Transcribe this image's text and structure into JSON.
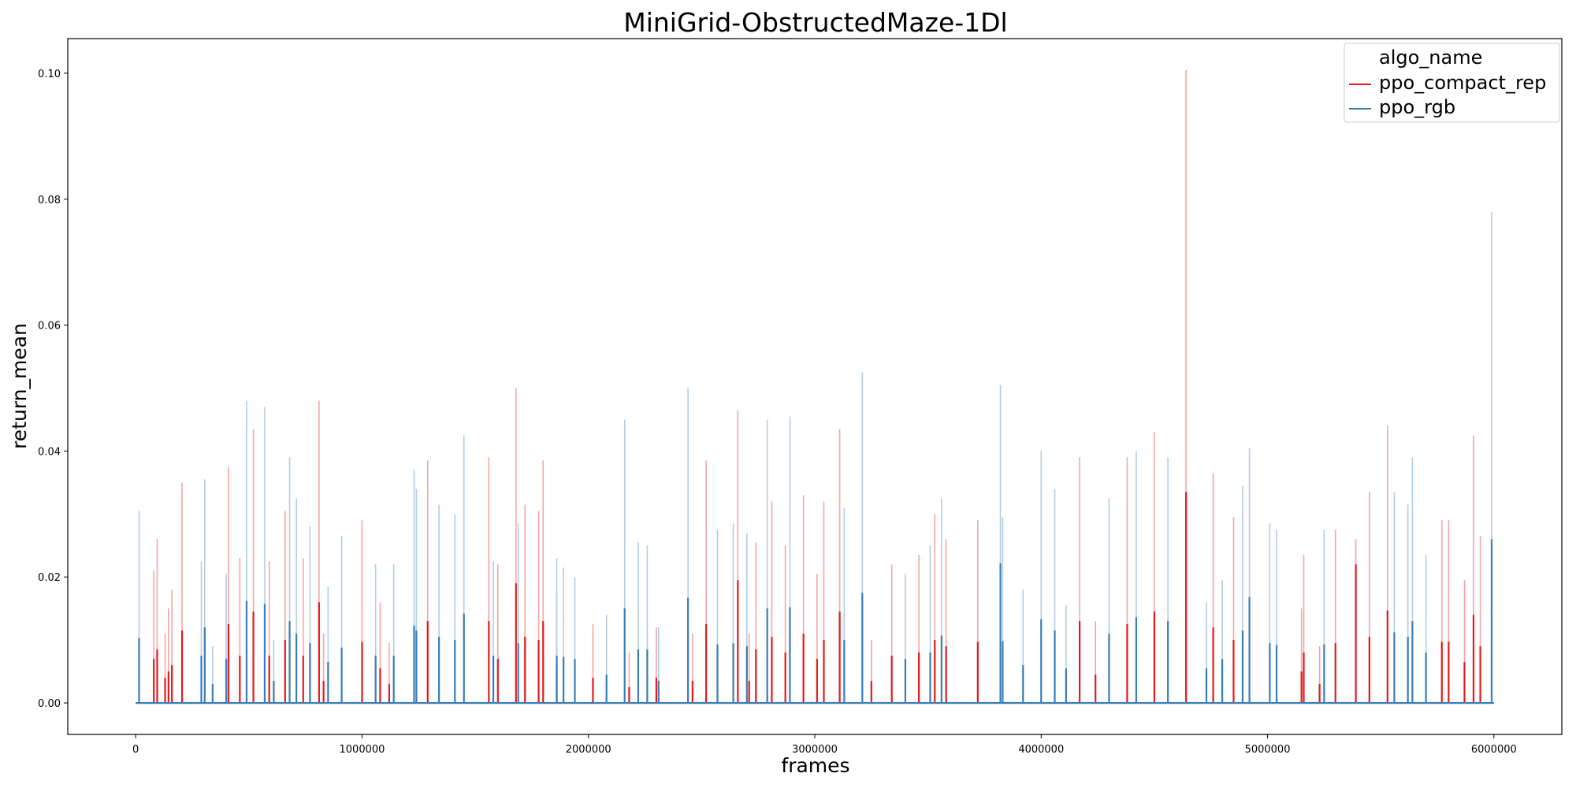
{
  "chart_data": {
    "type": "line",
    "title": "MiniGrid-ObstructedMaze-1Dl",
    "xlabel": "frames",
    "ylabel": "return_mean",
    "xlim": [
      -300000,
      6300000
    ],
    "ylim": [
      -0.005,
      0.1055
    ],
    "xticks": [
      0,
      1000000,
      2000000,
      3000000,
      4000000,
      5000000,
      6000000
    ],
    "xtick_labels": [
      "0",
      "1000000",
      "2000000",
      "3000000",
      "4000000",
      "5000000",
      "6000000"
    ],
    "yticks": [
      0.0,
      0.02,
      0.04,
      0.06,
      0.08,
      0.1
    ],
    "ytick_labels": [
      "0.00",
      "0.02",
      "0.04",
      "0.06",
      "0.08",
      "0.10"
    ],
    "grid": false,
    "legend": {
      "title": "algo_name",
      "placement": "top-right",
      "entries": [
        "ppo_compact_rep",
        "ppo_rgb"
      ]
    },
    "series": [
      {
        "name": "ppo_compact_rep",
        "color": "#e41a1c",
        "band_color": "#f4a6a7",
        "baseline": 0.0,
        "x_range": [
          0,
          6000000
        ],
        "spikes": [
          [
            80000,
            0.007,
            0.021
          ],
          [
            95000,
            0.0085,
            0.026
          ],
          [
            130000,
            0.004,
            0.011
          ],
          [
            145000,
            0.005,
            0.015
          ],
          [
            160000,
            0.006,
            0.018
          ],
          [
            205000,
            0.0115,
            0.035
          ],
          [
            410000,
            0.0125,
            0.0375
          ],
          [
            460000,
            0.0075,
            0.023
          ],
          [
            520000,
            0.0145,
            0.0435
          ],
          [
            590000,
            0.0075,
            0.0225
          ],
          [
            660000,
            0.01,
            0.0305
          ],
          [
            740000,
            0.0075,
            0.023
          ],
          [
            810000,
            0.016,
            0.048
          ],
          [
            830000,
            0.0035,
            0.011
          ],
          [
            1000000,
            0.0097,
            0.029
          ],
          [
            1080000,
            0.0055,
            0.016
          ],
          [
            1120000,
            0.003,
            0.0095
          ],
          [
            1290000,
            0.013,
            0.0385
          ],
          [
            1560000,
            0.013,
            0.039
          ],
          [
            1600000,
            0.007,
            0.022
          ],
          [
            1680000,
            0.019,
            0.05
          ],
          [
            1720000,
            0.0105,
            0.0315
          ],
          [
            1780000,
            0.01,
            0.0305
          ],
          [
            1800000,
            0.013,
            0.0385
          ],
          [
            1860000,
            0.006,
            0.018
          ],
          [
            2020000,
            0.004,
            0.0125
          ],
          [
            2180000,
            0.0025,
            0.008
          ],
          [
            2300000,
            0.004,
            0.012
          ],
          [
            2460000,
            0.0035,
            0.011
          ],
          [
            2520000,
            0.0125,
            0.0385
          ],
          [
            2660000,
            0.0195,
            0.0465
          ],
          [
            2710000,
            0.0035,
            0.011
          ],
          [
            2740000,
            0.0085,
            0.0255
          ],
          [
            2810000,
            0.0105,
            0.032
          ],
          [
            2870000,
            0.008,
            0.025
          ],
          [
            2950000,
            0.011,
            0.033
          ],
          [
            3010000,
            0.007,
            0.0205
          ],
          [
            3040000,
            0.01,
            0.032
          ],
          [
            3110000,
            0.0145,
            0.0435
          ],
          [
            3250000,
            0.0035,
            0.01
          ],
          [
            3340000,
            0.0075,
            0.022
          ],
          [
            3460000,
            0.008,
            0.0235
          ],
          [
            3530000,
            0.01,
            0.03
          ],
          [
            3580000,
            0.009,
            0.026
          ],
          [
            3720000,
            0.0097,
            0.029
          ],
          [
            4170000,
            0.013,
            0.039
          ],
          [
            4240000,
            0.0045,
            0.013
          ],
          [
            4380000,
            0.0125,
            0.039
          ],
          [
            4500000,
            0.0145,
            0.043
          ],
          [
            4640000,
            0.0335,
            0.1005
          ],
          [
            4760000,
            0.012,
            0.0365
          ],
          [
            4850000,
            0.01,
            0.0295
          ],
          [
            5150000,
            0.005,
            0.015
          ],
          [
            5160000,
            0.008,
            0.0235
          ],
          [
            5230000,
            0.003,
            0.009
          ],
          [
            5300000,
            0.0095,
            0.0275
          ],
          [
            5390000,
            0.022,
            0.026
          ],
          [
            5450000,
            0.0105,
            0.0335
          ],
          [
            5530000,
            0.0147,
            0.044
          ],
          [
            5770000,
            0.0097,
            0.029
          ],
          [
            5800000,
            0.0097,
            0.029
          ],
          [
            5870000,
            0.0065,
            0.0195
          ],
          [
            5910000,
            0.014,
            0.0425
          ],
          [
            5940000,
            0.009,
            0.0265
          ]
        ]
      },
      {
        "name": "ppo_rgb",
        "color": "#377eb8",
        "band_color": "#b3cde3",
        "baseline": 0.0,
        "x_range": [
          0,
          6000000
        ],
        "spikes": [
          [
            15000,
            0.0103,
            0.0305
          ],
          [
            290000,
            0.0075,
            0.0225
          ],
          [
            305000,
            0.012,
            0.0355
          ],
          [
            340000,
            0.003,
            0.009
          ],
          [
            400000,
            0.007,
            0.0205
          ],
          [
            490000,
            0.0162,
            0.048
          ],
          [
            570000,
            0.0157,
            0.047
          ],
          [
            610000,
            0.0035,
            0.01
          ],
          [
            680000,
            0.013,
            0.039
          ],
          [
            710000,
            0.011,
            0.0325
          ],
          [
            770000,
            0.0095,
            0.028
          ],
          [
            850000,
            0.0065,
            0.0185
          ],
          [
            910000,
            0.0088,
            0.0265
          ],
          [
            1060000,
            0.0075,
            0.022
          ],
          [
            1140000,
            0.0075,
            0.022
          ],
          [
            1230000,
            0.0123,
            0.037
          ],
          [
            1240000,
            0.0115,
            0.034
          ],
          [
            1340000,
            0.0105,
            0.0315
          ],
          [
            1410000,
            0.01,
            0.03
          ],
          [
            1450000,
            0.0142,
            0.0425
          ],
          [
            1580000,
            0.0075,
            0.0225
          ],
          [
            1690000,
            0.0095,
            0.0285
          ],
          [
            1860000,
            0.0075,
            0.023
          ],
          [
            1890000,
            0.0073,
            0.0215
          ],
          [
            1940000,
            0.007,
            0.02
          ],
          [
            2080000,
            0.0045,
            0.014
          ],
          [
            2160000,
            0.015,
            0.045
          ],
          [
            2220000,
            0.0085,
            0.0255
          ],
          [
            2260000,
            0.0085,
            0.025
          ],
          [
            2310000,
            0.0035,
            0.012
          ],
          [
            2440000,
            0.0167,
            0.05
          ],
          [
            2570000,
            0.0093,
            0.0275
          ],
          [
            2640000,
            0.0095,
            0.0285
          ],
          [
            2700000,
            0.009,
            0.027
          ],
          [
            2790000,
            0.015,
            0.045
          ],
          [
            2890000,
            0.0152,
            0.0455
          ],
          [
            3130000,
            0.01,
            0.031
          ],
          [
            3210000,
            0.0175,
            0.0525
          ],
          [
            3400000,
            0.007,
            0.0205
          ],
          [
            3510000,
            0.008,
            0.025
          ],
          [
            3560000,
            0.0107,
            0.0325
          ],
          [
            3820000,
            0.0222,
            0.0505
          ],
          [
            3830000,
            0.0098,
            0.0295
          ],
          [
            3920000,
            0.006,
            0.018
          ],
          [
            4000000,
            0.0133,
            0.04
          ],
          [
            4060000,
            0.0115,
            0.034
          ],
          [
            4110000,
            0.0055,
            0.0155
          ],
          [
            4300000,
            0.011,
            0.0325
          ],
          [
            4420000,
            0.0136,
            0.04
          ],
          [
            4560000,
            0.013,
            0.039
          ],
          [
            4730000,
            0.0055,
            0.016
          ],
          [
            4800000,
            0.007,
            0.0195
          ],
          [
            4890000,
            0.0115,
            0.0345
          ],
          [
            4920000,
            0.0168,
            0.0405
          ],
          [
            5010000,
            0.0095,
            0.0285
          ],
          [
            5040000,
            0.0092,
            0.0275
          ],
          [
            5250000,
            0.0093,
            0.0275
          ],
          [
            5560000,
            0.0112,
            0.0335
          ],
          [
            5620000,
            0.0105,
            0.0315
          ],
          [
            5640000,
            0.013,
            0.039
          ],
          [
            5700000,
            0.008,
            0.0235
          ],
          [
            5990000,
            0.026,
            0.078
          ]
        ]
      }
    ]
  }
}
